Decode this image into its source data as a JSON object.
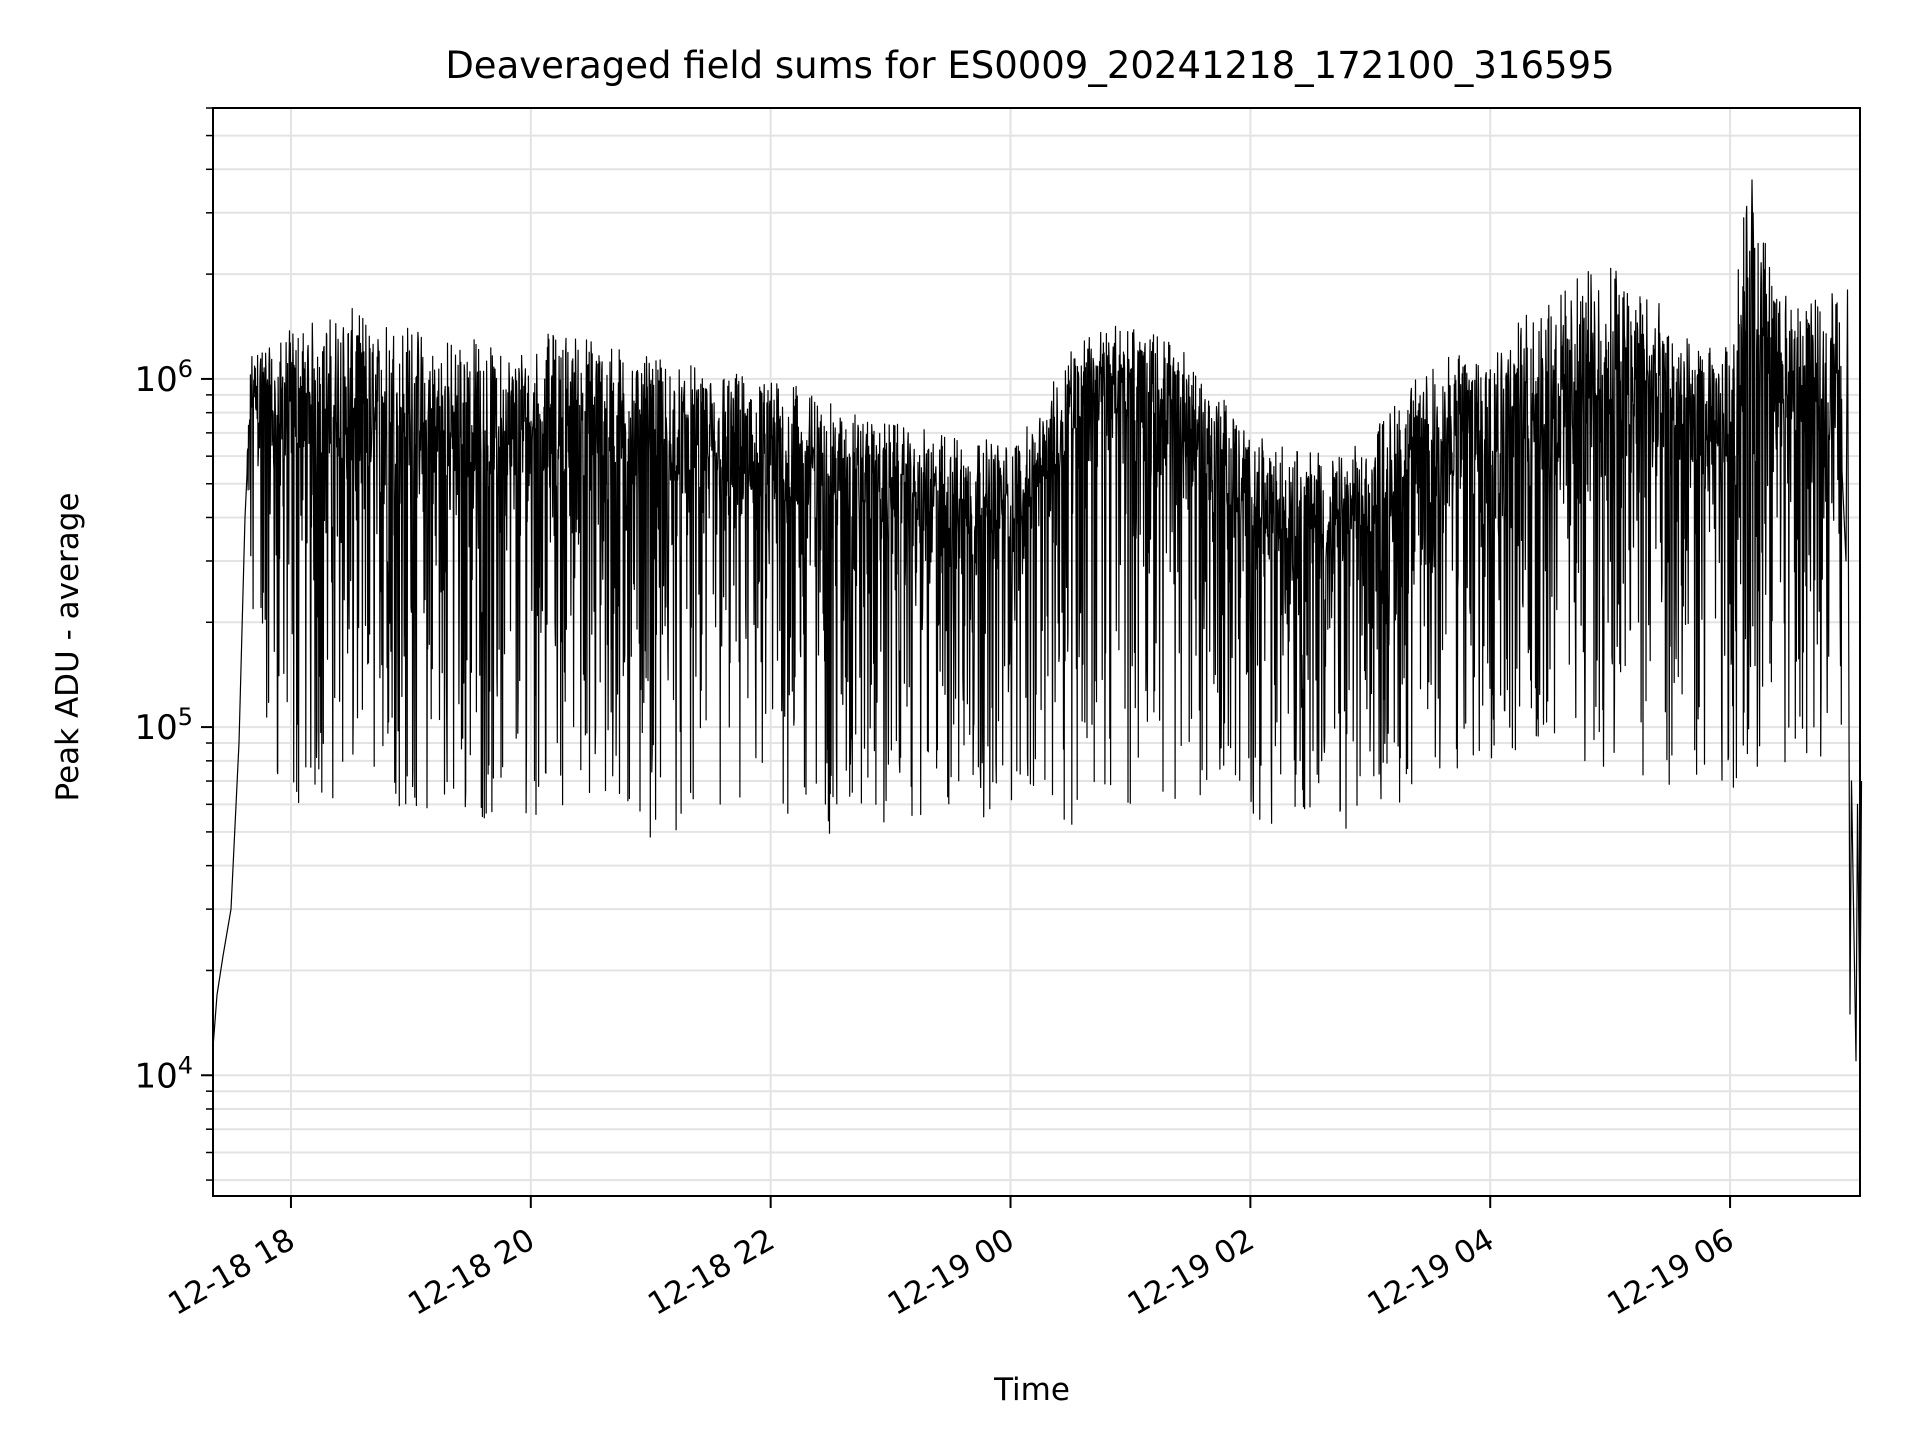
{
  "chart_data": {
    "type": "line",
    "title": "Deaveraged field sums for ES0009_20241218_172100_316595",
    "xlabel": "Time",
    "ylabel": "Peak ADU - average",
    "x_ticks": [
      "12-18 18",
      "12-18 20",
      "12-18 22",
      "12-19 00",
      "12-19 02",
      "12-19 04",
      "12-19 06"
    ],
    "y_ticks": [
      {
        "base": "10",
        "exp": "4",
        "value": 10000
      },
      {
        "base": "10",
        "exp": "5",
        "value": 100000
      },
      {
        "base": "10",
        "exp": "6",
        "value": 1000000
      }
    ],
    "xlim": [
      "2024-12-18 17:21",
      "2024-12-19 07:05"
    ],
    "ylim": [
      4500,
      6000000
    ],
    "yscale": "log",
    "grid": true,
    "line_color": "#000000",
    "series": [
      {
        "x": [
          "2024-12-18 17:21",
          "2024-12-18 17:23",
          "2024-12-18 17:26",
          "2024-12-18 17:30",
          "2024-12-18 17:34",
          "2024-12-18 17:37",
          "2024-12-18 17:40",
          "2024-12-18 17:45",
          "2024-12-18 17:50",
          "2024-12-18 18:00",
          "2024-12-18 18:15",
          "2024-12-18 18:30",
          "2024-12-18 18:45",
          "2024-12-18 19:00",
          "2024-12-18 19:15",
          "2024-12-18 19:30",
          "2024-12-18 19:45",
          "2024-12-18 20:00",
          "2024-12-18 20:15",
          "2024-12-18 20:30",
          "2024-12-18 20:45",
          "2024-12-18 21:00",
          "2024-12-18 21:15",
          "2024-12-18 21:30",
          "2024-12-18 21:45",
          "2024-12-18 22:00",
          "2024-12-18 22:15",
          "2024-12-18 22:30",
          "2024-12-18 22:45",
          "2024-12-18 23:00",
          "2024-12-18 23:15",
          "2024-12-18 23:30",
          "2024-12-18 23:45",
          "2024-12-19 00:00",
          "2024-12-19 00:15",
          "2024-12-19 00:30",
          "2024-12-19 00:45",
          "2024-12-19 01:00",
          "2024-12-19 01:15",
          "2024-12-19 01:30",
          "2024-12-19 01:45",
          "2024-12-19 02:00",
          "2024-12-19 02:15",
          "2024-12-19 02:30",
          "2024-12-19 02:45",
          "2024-12-19 03:00",
          "2024-12-19 03:15",
          "2024-12-19 03:30",
          "2024-12-19 03:45",
          "2024-12-19 04:00",
          "2024-12-19 04:15",
          "2024-12-19 04:30",
          "2024-12-19 04:45",
          "2024-12-19 05:00",
          "2024-12-19 05:15",
          "2024-12-19 05:30",
          "2024-12-19 05:45",
          "2024-12-19 06:00",
          "2024-12-19 06:10",
          "2024-12-19 06:15",
          "2024-12-19 06:30",
          "2024-12-19 06:45",
          "2024-12-19 06:55",
          "2024-12-19 06:58",
          "2024-12-19 07:00",
          "2024-12-19 07:03",
          "2024-12-19 07:05"
        ],
        "peak": [
          12000,
          17000,
          22000,
          30000,
          90000,
          400000,
          1200000,
          1400000,
          1200000,
          1400000,
          1500000,
          1600000,
          1500000,
          1450000,
          1300000,
          1350000,
          1200000,
          1300000,
          1400000,
          1350000,
          1250000,
          1150000,
          1100000,
          1100000,
          1050000,
          1000000,
          950000,
          850000,
          800000,
          750000,
          720000,
          700000,
          680000,
          650000,
          800000,
          1300000,
          1400000,
          1450000,
          1350000,
          1200000,
          900000,
          700000,
          650000,
          620000,
          600000,
          700000,
          900000,
          1100000,
          1200000,
          1300000,
          1500000,
          1700000,
          2000000,
          2200000,
          2000000,
          1500000,
          1200000,
          1300000,
          4500000,
          2800000,
          1600000,
          1700000,
          2000000,
          1800000,
          70000,
          60000,
          70000
        ],
        "base": [
          12000,
          17000,
          22000,
          30000,
          90000,
          400000,
          700000,
          500000,
          400000,
          350000,
          350000,
          330000,
          350000,
          330000,
          320000,
          310000,
          320000,
          330000,
          350000,
          340000,
          330000,
          330000,
          320000,
          310000,
          300000,
          300000,
          290000,
          280000,
          270000,
          260000,
          250000,
          240000,
          250000,
          260000,
          350000,
          500000,
          550000,
          550000,
          480000,
          400000,
          300000,
          250000,
          230000,
          220000,
          210000,
          230000,
          280000,
          320000,
          340000,
          350000,
          380000,
          400000,
          420000,
          400000,
          380000,
          350000,
          330000,
          380000,
          420000,
          430000,
          400000,
          420000,
          450000,
          300000,
          15000,
          11000,
          13000
        ],
        "trough": [
          12000,
          17000,
          22000,
          30000,
          90000,
          300000,
          150000,
          80000,
          60000,
          55000,
          60000,
          65000,
          60000,
          55000,
          55000,
          52000,
          55000,
          55000,
          60000,
          55000,
          50000,
          48000,
          50000,
          52000,
          50000,
          50000,
          52000,
          48000,
          48000,
          50000,
          52000,
          55000,
          55000,
          55000,
          55000,
          52000,
          58000,
          60000,
          60000,
          58000,
          60000,
          55000,
          52000,
          50000,
          50000,
          55000,
          60000,
          65000,
          70000,
          70000,
          70000,
          75000,
          75000,
          75000,
          70000,
          65000,
          65000,
          65000,
          70000,
          70000,
          80000,
          80000,
          100000,
          100000,
          11000,
          10500,
          11000
        ]
      }
    ]
  }
}
